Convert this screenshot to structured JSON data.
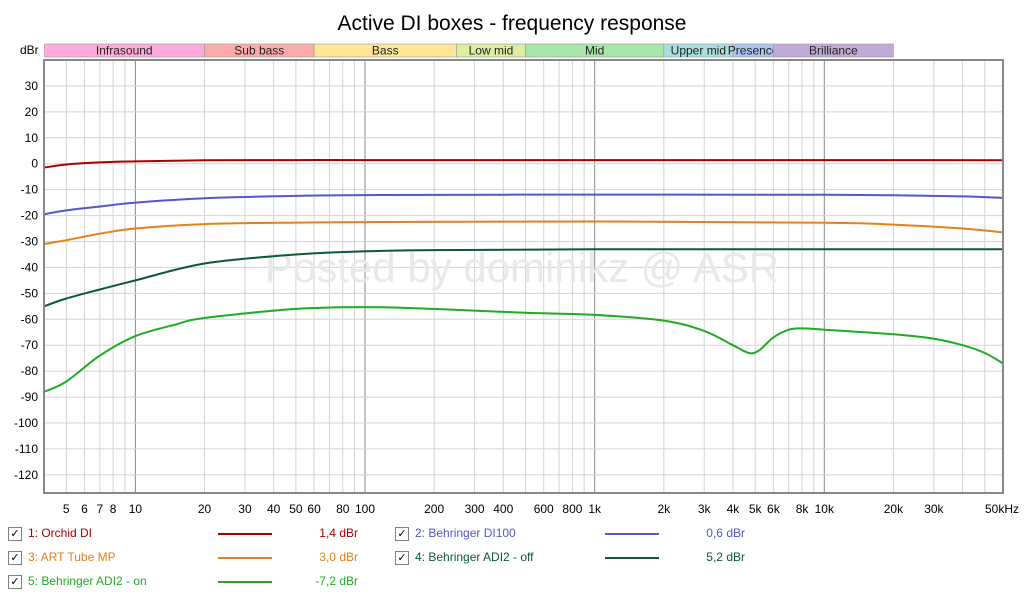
{
  "chart_data": {
    "type": "line",
    "title": "Active DI boxes - frequency response",
    "ylabel": "dBr",
    "xscale": "log",
    "xlim": [
      4,
      60000
    ],
    "ylim": [
      -127,
      40
    ],
    "yticks": [
      30,
      20,
      10,
      0,
      -10,
      -20,
      -30,
      -40,
      -50,
      -60,
      -70,
      -80,
      -90,
      -100,
      -110,
      -120
    ],
    "xtick_labels": [
      {
        "f": 5,
        "label": "5"
      },
      {
        "f": 6,
        "label": "6"
      },
      {
        "f": 7,
        "label": "7"
      },
      {
        "f": 8,
        "label": "8"
      },
      {
        "f": 10,
        "label": "10"
      },
      {
        "f": 20,
        "label": "20"
      },
      {
        "f": 30,
        "label": "30"
      },
      {
        "f": 40,
        "label": "40"
      },
      {
        "f": 50,
        "label": "50"
      },
      {
        "f": 60,
        "label": "60"
      },
      {
        "f": 80,
        "label": "80"
      },
      {
        "f": 100,
        "label": "100"
      },
      {
        "f": 200,
        "label": "200"
      },
      {
        "f": 300,
        "label": "300"
      },
      {
        "f": 400,
        "label": "400"
      },
      {
        "f": 600,
        "label": "600"
      },
      {
        "f": 800,
        "label": "800"
      },
      {
        "f": 1000,
        "label": "1k"
      },
      {
        "f": 2000,
        "label": "2k"
      },
      {
        "f": 3000,
        "label": "3k"
      },
      {
        "f": 4000,
        "label": "4k"
      },
      {
        "f": 5000,
        "label": "5k"
      },
      {
        "f": 6000,
        "label": "6k"
      },
      {
        "f": 8000,
        "label": "8k"
      },
      {
        "f": 10000,
        "label": "10k"
      },
      {
        "f": 20000,
        "label": "20k"
      },
      {
        "f": 30000,
        "label": "30k"
      },
      {
        "f": 50000,
        "label": "50kHz"
      }
    ],
    "bands": [
      {
        "name": "Infrasound",
        "from": 4,
        "to": 20,
        "color": "#ffaadd"
      },
      {
        "name": "Sub bass",
        "from": 20,
        "to": 60,
        "color": "#ffaaaa"
      },
      {
        "name": "Bass",
        "from": 60,
        "to": 250,
        "color": "#ffe699"
      },
      {
        "name": "Low mid",
        "from": 250,
        "to": 500,
        "color": "#ddeea0"
      },
      {
        "name": "Mid",
        "from": 500,
        "to": 2000,
        "color": "#a8e6a8"
      },
      {
        "name": "Upper mid",
        "from": 2000,
        "to": 4000,
        "color": "#a8dede"
      },
      {
        "name": "Presence",
        "from": 4000,
        "to": 6000,
        "color": "#aac4ee"
      },
      {
        "name": "Brilliance",
        "from": 6000,
        "to": 20000,
        "color": "#bfaad8"
      }
    ],
    "watermark": "Posted by dominikz @ ASR",
    "series": [
      {
        "name": "1: Orchid DI",
        "color": "#aa0000",
        "value_label": "1,4 dBr",
        "points": [
          [
            4,
            -1.5
          ],
          [
            5,
            -0.3
          ],
          [
            7,
            0.5
          ],
          [
            10,
            0.9
          ],
          [
            20,
            1.3
          ],
          [
            50,
            1.4
          ],
          [
            100,
            1.4
          ],
          [
            1000,
            1.4
          ],
          [
            10000,
            1.4
          ],
          [
            30000,
            1.4
          ],
          [
            60000,
            1.3
          ]
        ]
      },
      {
        "name": "2: Behringer DI100",
        "color": "#5555cc",
        "value_label": "0,6 dBr",
        "points": [
          [
            4,
            -19.5
          ],
          [
            5,
            -18
          ],
          [
            7,
            -16.5
          ],
          [
            10,
            -15
          ],
          [
            20,
            -13.3
          ],
          [
            50,
            -12.4
          ],
          [
            100,
            -12.1
          ],
          [
            1000,
            -11.9
          ],
          [
            10000,
            -12
          ],
          [
            20000,
            -12.2
          ],
          [
            40000,
            -12.6
          ],
          [
            60000,
            -13.2
          ]
        ]
      },
      {
        "name": "3: ART Tube MP",
        "color": "#e6801a",
        "value_label": "3,0 dBr",
        "points": [
          [
            4,
            -31
          ],
          [
            5,
            -29.5
          ],
          [
            7,
            -27
          ],
          [
            10,
            -25
          ],
          [
            20,
            -23.3
          ],
          [
            50,
            -22.7
          ],
          [
            100,
            -22.5
          ],
          [
            1000,
            -22.3
          ],
          [
            10000,
            -22.8
          ],
          [
            20000,
            -23.5
          ],
          [
            40000,
            -25
          ],
          [
            60000,
            -26.5
          ]
        ]
      },
      {
        "name": "4: Behringer ADI2 - off",
        "color": "#0a5a32",
        "value_label": "5,2 dBr",
        "points": [
          [
            4,
            -55
          ],
          [
            5,
            -52
          ],
          [
            7,
            -48.5
          ],
          [
            10,
            -45
          ],
          [
            20,
            -38.5
          ],
          [
            50,
            -35
          ],
          [
            100,
            -33.8
          ],
          [
            200,
            -33.3
          ],
          [
            1000,
            -33
          ],
          [
            10000,
            -33
          ],
          [
            60000,
            -33
          ]
        ]
      },
      {
        "name": "5: Behringer ADI2 - on",
        "color": "#22aa22",
        "value_label": "-7,2 dBr",
        "points": [
          [
            4,
            -88
          ],
          [
            5,
            -84
          ],
          [
            7,
            -74
          ],
          [
            10,
            -66.5
          ],
          [
            15,
            -62
          ],
          [
            20,
            -59.5
          ],
          [
            50,
            -56
          ],
          [
            100,
            -55.3
          ],
          [
            200,
            -56
          ],
          [
            500,
            -57.5
          ],
          [
            1000,
            -58.3
          ],
          [
            2000,
            -60.5
          ],
          [
            3000,
            -64.5
          ],
          [
            4000,
            -70
          ],
          [
            4700,
            -73
          ],
          [
            5200,
            -72
          ],
          [
            6000,
            -67
          ],
          [
            7000,
            -64
          ],
          [
            8000,
            -63.5
          ],
          [
            10000,
            -64
          ],
          [
            20000,
            -65.8
          ],
          [
            30000,
            -67.5
          ],
          [
            40000,
            -70
          ],
          [
            50000,
            -73
          ],
          [
            60000,
            -77
          ]
        ]
      }
    ]
  },
  "legend": [
    {
      "label": "1: Orchid DI",
      "value": "1,4 dBr",
      "checked": "✓"
    },
    {
      "label": "2: Behringer DI100",
      "value": "0,6 dBr",
      "checked": "✓"
    },
    {
      "label": "3: ART Tube MP",
      "value": "3,0 dBr",
      "checked": "✓"
    },
    {
      "label": "4: Behringer ADI2 - off",
      "value": "5,2 dBr",
      "checked": "✓"
    },
    {
      "label": "5: Behringer ADI2 - on",
      "value": "-7,2 dBr",
      "checked": "✓"
    }
  ]
}
